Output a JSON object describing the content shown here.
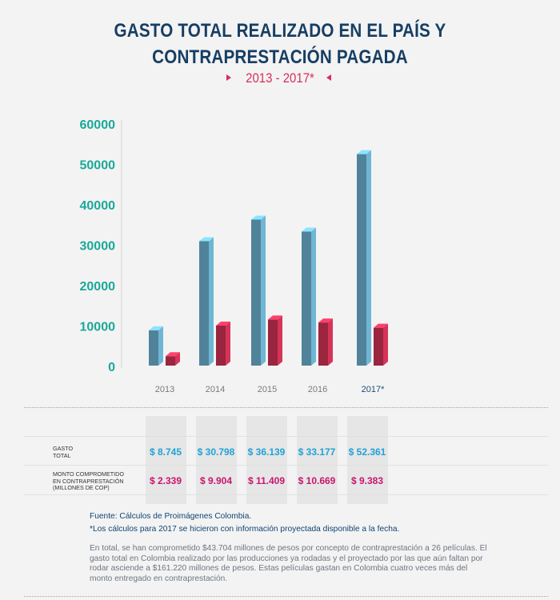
{
  "header": {
    "title_line1": "GASTO TOTAL REALIZADO EN EL PAÍS Y",
    "title_line2": "CONTRAPRESTACIÓN PAGADA",
    "subtitle": "2013 - 2017*"
  },
  "colors": {
    "title": "#163e63",
    "accent": "#d62f5a",
    "axis_ticks": "#1aa89a",
    "gasto_bar": "#6fb6d4",
    "monto_bar": "#d63358",
    "gasto_text": "#1fa2d6",
    "monto_text": "#c8166e"
  },
  "chart_data": {
    "type": "bar",
    "categories": [
      "2013",
      "2014",
      "2015",
      "2016",
      "2017*"
    ],
    "series": [
      {
        "name": "GASTO TOTAL",
        "values": [
          8745,
          30798,
          36139,
          33177,
          52361
        ]
      },
      {
        "name": "MONTO COMPROMETIDO EN CONTRAPRESTACIÓN (MILLONES DE COP)",
        "values": [
          2339,
          9904,
          11409,
          10669,
          9383
        ]
      }
    ],
    "yticks": [
      "0",
      "10000",
      "20000",
      "30000",
      "40000",
      "50000",
      "60000"
    ],
    "ylim": [
      0,
      60000
    ],
    "grid": false
  },
  "table": {
    "rows": [
      {
        "label": "GASTO\nTOTAL",
        "values": [
          "$ 8.745",
          "$ 30.798",
          "$ 36.139",
          "$ 33.177",
          "$ 52.361"
        ]
      },
      {
        "label": "MONTO COMPROMETIDO\nEN CONTRAPRESTACIÓN\n(MILLONES DE COP)",
        "values": [
          "$ 2.339",
          "$ 9.904",
          "$ 11.409",
          "$ 10.669",
          "$ 9.383"
        ]
      }
    ]
  },
  "footer": {
    "fuente_label": "Fuente:",
    "fuente_text": "Cálculos de Proimágenes Colombia.",
    "nota": "*Los cálculos para 2017 se hicieron con información proyectada disponible a la fecha.",
    "parrafo": "En total, se han comprometido $43.704 millones de pesos por concepto de contraprestación a 26 películas. El gasto total en Colombia realizado por las producciones ya rodadas y el proyectado por las que aún faltan por rodar asciende a $161.220 millones de pesos. Estas películas gastan en Colombia cuatro veces más del monto entregado en contraprestación."
  }
}
